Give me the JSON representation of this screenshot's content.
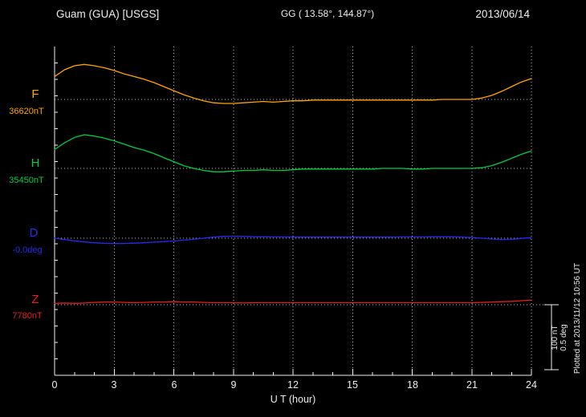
{
  "header": {
    "station": "Guam (GUA)  [USGS]",
    "coords": "GG ( 13.58°, 144.87°)",
    "date": "2013/06/14"
  },
  "xaxis": {
    "title": "U T (hour)",
    "ticks": [
      "0",
      "3",
      "6",
      "9",
      "12",
      "15",
      "18",
      "21",
      "24"
    ]
  },
  "scalebar": {
    "nt": "100 nT",
    "deg": "0.5 deg"
  },
  "footer": {
    "plotted_at": "Plotted at 2013/11/12 10:56 UT"
  },
  "channels": [
    {
      "name": "F",
      "baseline_label": "36620nT",
      "color": "#ffa500"
    },
    {
      "name": "H",
      "baseline_label": "35450nT",
      "color": "#00cc44"
    },
    {
      "name": "D",
      "baseline_label": "-0.0deg",
      "color": "#2a2aee"
    },
    {
      "name": "Z",
      "baseline_label": "7780nT",
      "color": "#e62020"
    }
  ],
  "colors": {
    "background": "#000000",
    "axis": "#f0f0f0",
    "grid": "#c0c0c0"
  },
  "chart_data": {
    "type": "line",
    "title": "Guam (GUA) [USGS] magnetogram, 2013/06/14",
    "xlabel": "U T (hour)",
    "xlim": [
      0,
      24
    ],
    "x_ticks": [
      0,
      3,
      6,
      9,
      12,
      15,
      18,
      21,
      24
    ],
    "x_step_hours": 0.5,
    "grid": "dotted vertical lines every 3 h; dotted horizontal baseline per channel",
    "scale_per_division": {
      "nT": 100,
      "deg": 0.5
    },
    "series": [
      {
        "name": "F",
        "unit": "nT",
        "baseline": 36620,
        "offsets": [
          34,
          44,
          50,
          52,
          50,
          47,
          43,
          38,
          34,
          30,
          25,
          19,
          13,
          7,
          2,
          -2,
          -5,
          -6,
          -6,
          -5,
          -4,
          -3,
          -4,
          -3,
          -2,
          -2,
          -1,
          -1,
          -1,
          -1,
          -1,
          -1,
          -1,
          -1,
          -1,
          -1,
          -1,
          -1,
          -1,
          0,
          0,
          0,
          0,
          2,
          6,
          12,
          19,
          26,
          31
        ]
      },
      {
        "name": "H",
        "unit": "nT",
        "baseline": 35450,
        "offsets": [
          28,
          38,
          46,
          50,
          48,
          45,
          41,
          36,
          31,
          27,
          22,
          16,
          10,
          4,
          0,
          -3,
          -5,
          -5,
          -4,
          -3,
          -3,
          -2,
          -3,
          -3,
          -2,
          -1,
          -1,
          -1,
          -1,
          -1,
          -1,
          -1,
          -1,
          0,
          0,
          0,
          -1,
          -1,
          0,
          0,
          0,
          0,
          0,
          1,
          4,
          9,
          15,
          21,
          26
        ]
      },
      {
        "name": "D",
        "unit": "deg",
        "baseline": 0,
        "offsets": [
          0,
          -0.01,
          -0.02,
          -0.028,
          -0.034,
          -0.038,
          -0.04,
          -0.039,
          -0.037,
          -0.034,
          -0.03,
          -0.026,
          -0.021,
          -0.015,
          -0.008,
          0,
          0.008,
          0.013,
          0.015,
          0.013,
          0.011,
          0.01,
          0.009,
          0.009,
          0.008,
          0.008,
          0.008,
          0.008,
          0.008,
          0.008,
          0.008,
          0.008,
          0.008,
          0.008,
          0.008,
          0.009,
          0.009,
          0.009,
          0.01,
          0.01,
          0.01,
          0.008,
          0.005,
          0,
          -0.006,
          -0.01,
          -0.008,
          -0.002,
          0.004
        ]
      },
      {
        "name": "Z",
        "unit": "nT",
        "baseline": 7780,
        "offsets": [
          2,
          2.5,
          2,
          2.5,
          3.5,
          4,
          4,
          3.5,
          3,
          3.5,
          4,
          4,
          4.5,
          4,
          4,
          3.5,
          3,
          3,
          3,
          2.5,
          3,
          3,
          3,
          3,
          3,
          3,
          3,
          3,
          3,
          3,
          3,
          3,
          3,
          3,
          3,
          3,
          3,
          3,
          3,
          3,
          3,
          3,
          3,
          3.5,
          4,
          4.5,
          5,
          6,
          7
        ]
      }
    ]
  }
}
